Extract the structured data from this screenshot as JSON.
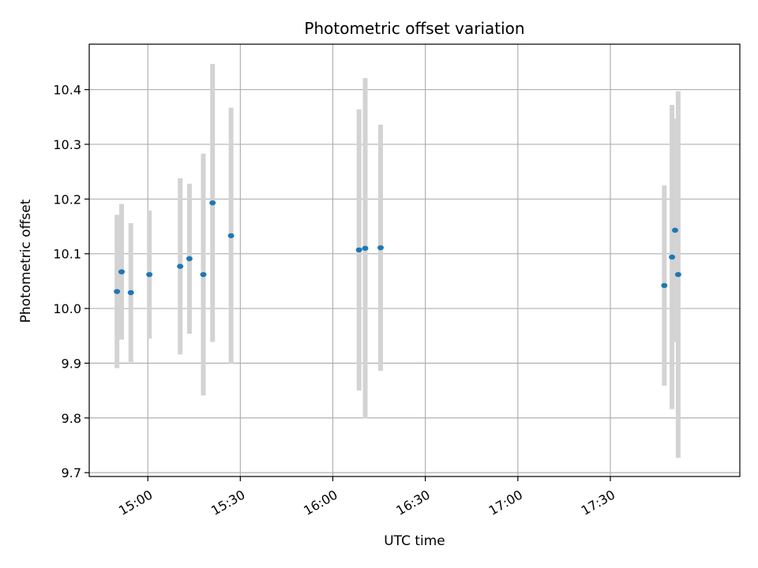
{
  "chart_data": {
    "type": "scatter",
    "title": "Photometric offset variation",
    "xlabel": "UTC time",
    "ylabel": "Photometric offset",
    "x_axis_type": "time",
    "x_ticks": [
      "15:00",
      "15:30",
      "16:00",
      "16:30",
      "17:00",
      "17:30"
    ],
    "xlim": [
      "14:41",
      "18:12"
    ],
    "y_ticks": [
      "9.7",
      "9.8",
      "9.9",
      "10.0",
      "10.1",
      "10.2",
      "10.3",
      "10.4"
    ],
    "ylim": [
      9.693,
      10.483
    ],
    "grid": true,
    "marker_color": "#1f77b4",
    "errorbar_color": "#d3d3d3",
    "points": [
      {
        "x": "14:50",
        "y": 10.031,
        "yerr": 0.14
      },
      {
        "x": "14:51.5",
        "y": 10.067,
        "yerr": 0.124
      },
      {
        "x": "14:54.5",
        "y": 10.029,
        "yerr": 0.127
      },
      {
        "x": "15:00.5",
        "y": 10.062,
        "yerr": 0.117
      },
      {
        "x": "15:10.5",
        "y": 10.077,
        "yerr": 0.161
      },
      {
        "x": "15:13.5",
        "y": 10.091,
        "yerr": 0.137
      },
      {
        "x": "15:18",
        "y": 10.062,
        "yerr": 0.221
      },
      {
        "x": "15:21",
        "y": 10.193,
        "yerr": 0.254
      },
      {
        "x": "15:27",
        "y": 10.133,
        "yerr": 0.234
      },
      {
        "x": "16:08.5",
        "y": 10.107,
        "yerr": 0.257
      },
      {
        "x": "16:10.5",
        "y": 10.11,
        "yerr": 0.311
      },
      {
        "x": "16:15.5",
        "y": 10.111,
        "yerr": 0.225
      },
      {
        "x": "17:47.5",
        "y": 10.042,
        "yerr": 0.183
      },
      {
        "x": "17:50",
        "y": 10.094,
        "yerr": 0.278
      },
      {
        "x": "17:51",
        "y": 10.143,
        "yerr": 0.204
      },
      {
        "x": "17:52",
        "y": 10.062,
        "yerr": 0.335
      }
    ]
  }
}
